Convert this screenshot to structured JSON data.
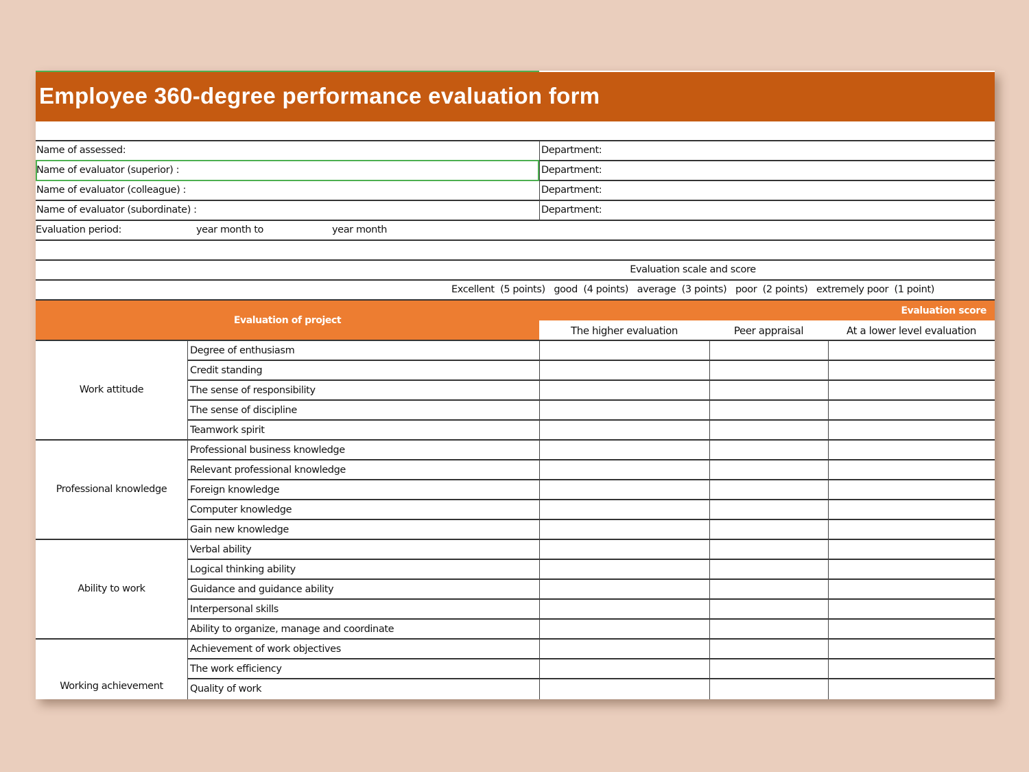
{
  "title": "Employee 360-degree performance evaluation form",
  "info_rows": [
    {
      "label": "Name of assessed:",
      "dept": "Department:"
    },
    {
      "label": "Name of evaluator (superior) :",
      "dept": "Department:"
    },
    {
      "label": "Name of evaluator (colleague) :",
      "dept": "Department:"
    },
    {
      "label": "Name of evaluator (subordinate) :",
      "dept": "Department:"
    }
  ],
  "period": {
    "label": "Evaluation period:",
    "from": "year month to",
    "to": "year month"
  },
  "scale": {
    "title": "Evaluation scale and score",
    "levels": "Excellent  (5 points)   good  (4 points)   average  (3 points)   poor  (2 points)   extremely poor  (1 point)"
  },
  "header": {
    "project": "Evaluation of project",
    "score": "Evaluation score",
    "columns": [
      "The higher evaluation",
      "Peer appraisal",
      "At a lower level evaluation"
    ]
  },
  "colors": {
    "title_band": "#c55a11",
    "header": "#ed7d31",
    "selection": "#4caf50"
  },
  "groups": [
    {
      "name": "Work attitude",
      "items": [
        "Degree of enthusiasm",
        "Credit standing",
        "The sense of responsibility",
        "The sense of discipline",
        "Teamwork spirit"
      ]
    },
    {
      "name": "Professional knowledge",
      "items": [
        "Professional business knowledge",
        "Relevant professional knowledge",
        "Foreign knowledge",
        "Computer knowledge",
        "Gain new knowledge"
      ]
    },
    {
      "name": "Ability to work",
      "items": [
        "Verbal ability",
        "Logical thinking ability",
        "Guidance and guidance ability",
        "Interpersonal skills",
        "Ability to organize, manage and coordinate"
      ]
    },
    {
      "name": "Working  achievement",
      "items": [
        "Achievement of work objectives",
        "The work efficiency",
        "Quality of work"
      ]
    }
  ]
}
